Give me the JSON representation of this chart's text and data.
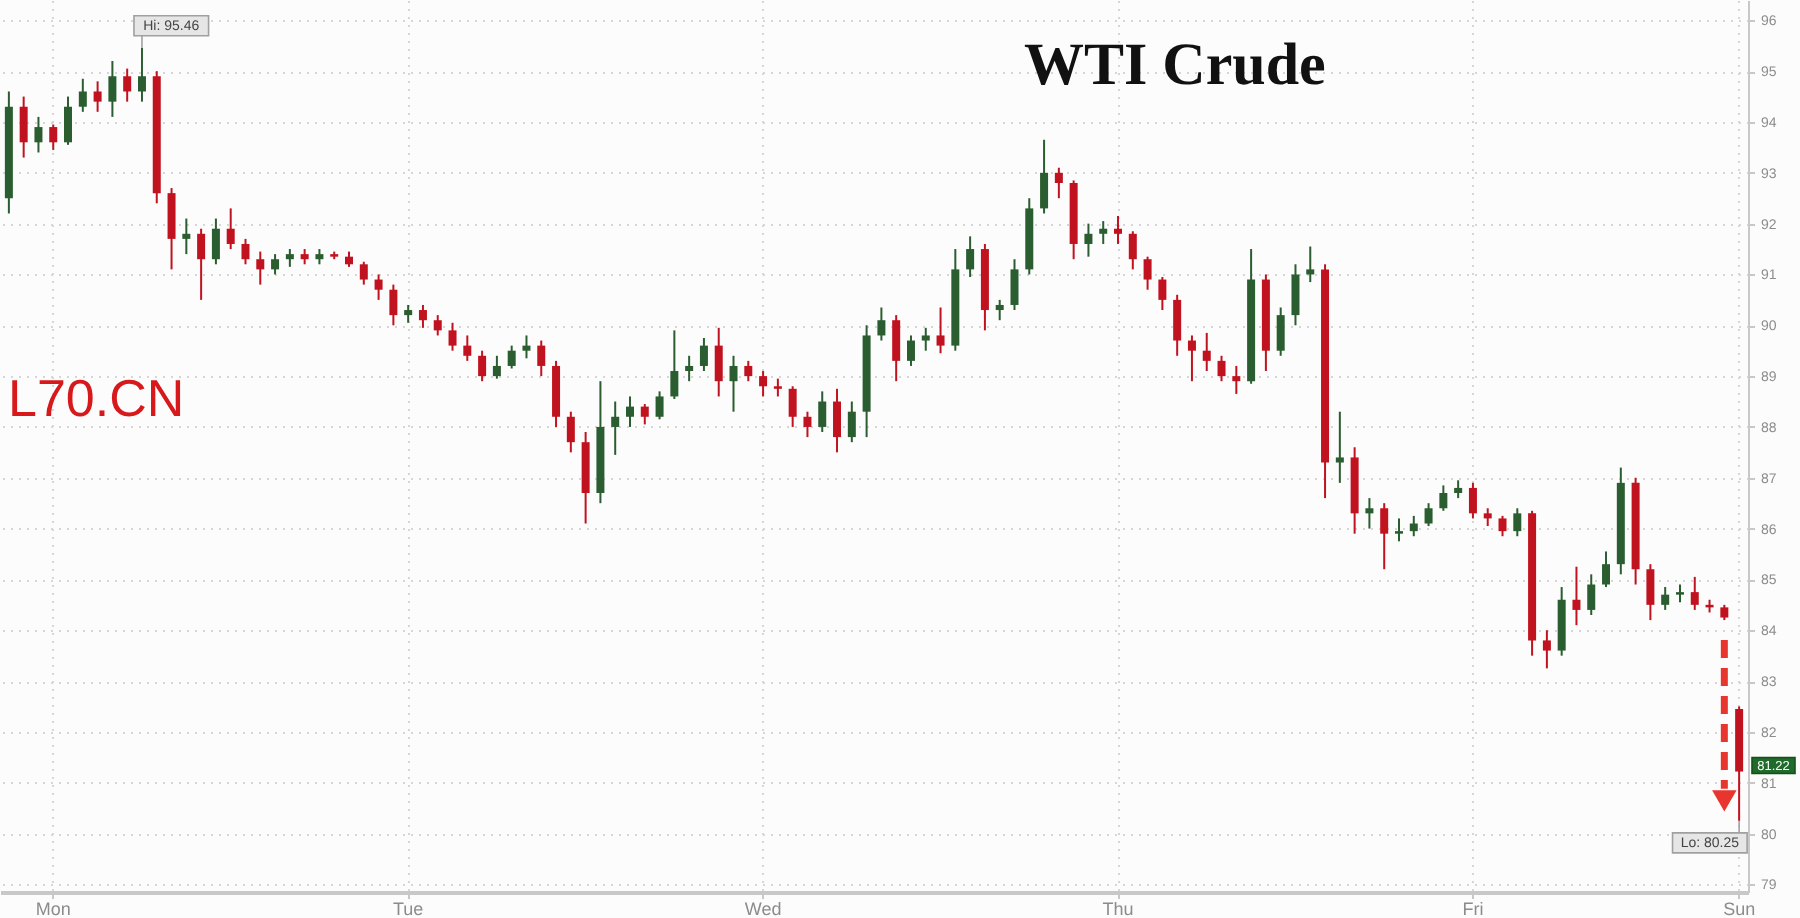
{
  "chart_data": {
    "type": "candlestick",
    "title": "WTI Crude",
    "annotations": [
      "L70.CN",
      "Hi: 95.46",
      {
        "text": "Lo: 80.25",
        "x": "Sun",
        "y": 80.25
      },
      {
        "text": "81.22",
        "x": "Sun",
        "y": 81.22
      }
    ],
    "categories": [
      null,
      null,
      null,
      "Mon",
      null,
      null,
      null,
      null,
      null,
      null,
      null,
      null,
      null,
      null,
      null,
      null,
      null,
      null,
      null,
      null,
      null,
      null,
      null,
      null,
      null,
      null,
      null,
      "Tue",
      null,
      null,
      null,
      null,
      null,
      null,
      null,
      null,
      null,
      null,
      null,
      null,
      null,
      null,
      null,
      null,
      null,
      null,
      null,
      null,
      null,
      null,
      null,
      "Wed",
      null,
      null,
      null,
      null,
      null,
      null,
      null,
      null,
      null,
      null,
      null,
      null,
      null,
      null,
      null,
      null,
      null,
      null,
      null,
      null,
      null,
      null,
      null,
      "Thu",
      null,
      null,
      null,
      null,
      null,
      null,
      null,
      null,
      null,
      null,
      null,
      null,
      null,
      null,
      null,
      null,
      null,
      null,
      null,
      null,
      null,
      null,
      null,
      "Fri",
      null,
      null,
      null,
      null,
      null,
      null,
      null,
      null,
      null,
      null,
      null,
      null,
      null,
      null,
      null,
      null,
      null,
      "Sun"
    ],
    "ohlc": [
      [
        92.5,
        94.6,
        92.2,
        94.3
      ],
      [
        94.3,
        94.5,
        93.3,
        93.6
      ],
      [
        93.6,
        94.1,
        93.4,
        93.9
      ],
      [
        93.9,
        93.95,
        93.45,
        93.6
      ],
      [
        93.6,
        94.5,
        93.55,
        94.3
      ],
      [
        94.3,
        94.85,
        94.2,
        94.6
      ],
      [
        94.6,
        94.8,
        94.2,
        94.4
      ],
      [
        94.4,
        95.2,
        94.1,
        94.9
      ],
      [
        94.9,
        95.05,
        94.4,
        94.6
      ],
      [
        94.6,
        95.46,
        94.4,
        94.9
      ],
      [
        94.9,
        95.0,
        92.4,
        92.6
      ],
      [
        92.6,
        92.7,
        91.1,
        91.7
      ],
      [
        91.7,
        92.1,
        91.4,
        91.8
      ],
      [
        91.8,
        91.9,
        90.5,
        91.3
      ],
      [
        91.3,
        92.1,
        91.2,
        91.9
      ],
      [
        91.9,
        92.3,
        91.5,
        91.6
      ],
      [
        91.6,
        91.7,
        91.2,
        91.3
      ],
      [
        91.3,
        91.45,
        90.8,
        91.1
      ],
      [
        91.1,
        91.4,
        91.0,
        91.3
      ],
      [
        91.3,
        91.5,
        91.15,
        91.4
      ],
      [
        91.4,
        91.5,
        91.2,
        91.3
      ],
      [
        91.3,
        91.5,
        91.2,
        91.4
      ],
      [
        91.4,
        91.45,
        91.3,
        91.35
      ],
      [
        91.35,
        91.45,
        91.15,
        91.2
      ],
      [
        91.2,
        91.25,
        90.8,
        90.9
      ],
      [
        90.9,
        91.0,
        90.5,
        90.7
      ],
      [
        90.7,
        90.8,
        90.0,
        90.2
      ],
      [
        90.2,
        90.4,
        90.05,
        90.3
      ],
      [
        90.3,
        90.4,
        89.95,
        90.1
      ],
      [
        90.1,
        90.2,
        89.8,
        89.9
      ],
      [
        89.9,
        90.05,
        89.5,
        89.6
      ],
      [
        89.6,
        89.8,
        89.3,
        89.4
      ],
      [
        89.4,
        89.5,
        88.9,
        89.0
      ],
      [
        89.0,
        89.4,
        88.95,
        89.2
      ],
      [
        89.2,
        89.6,
        89.15,
        89.5
      ],
      [
        89.5,
        89.8,
        89.35,
        89.6
      ],
      [
        89.6,
        89.7,
        89.0,
        89.2
      ],
      [
        89.2,
        89.3,
        88.0,
        88.2
      ],
      [
        88.2,
        88.3,
        87.5,
        87.7
      ],
      [
        87.7,
        87.9,
        86.1,
        86.7
      ],
      [
        86.7,
        88.9,
        86.5,
        88.0
      ],
      [
        88.0,
        88.5,
        87.45,
        88.2
      ],
      [
        88.2,
        88.6,
        88.0,
        88.4
      ],
      [
        88.4,
        88.45,
        88.05,
        88.2
      ],
      [
        88.2,
        88.7,
        88.15,
        88.6
      ],
      [
        88.6,
        89.9,
        88.55,
        89.1
      ],
      [
        89.1,
        89.4,
        88.9,
        89.2
      ],
      [
        89.2,
        89.75,
        89.1,
        89.6
      ],
      [
        89.6,
        89.95,
        88.6,
        88.9
      ],
      [
        88.9,
        89.4,
        88.3,
        89.2
      ],
      [
        89.2,
        89.3,
        88.9,
        89.0
      ],
      [
        89.0,
        89.1,
        88.6,
        88.8
      ],
      [
        88.8,
        88.95,
        88.6,
        88.75
      ],
      [
        88.75,
        88.8,
        88.0,
        88.2
      ],
      [
        88.2,
        88.3,
        87.8,
        88.0
      ],
      [
        88.0,
        88.7,
        87.9,
        88.5
      ],
      [
        88.5,
        88.75,
        87.5,
        87.8
      ],
      [
        87.8,
        88.5,
        87.7,
        88.3
      ],
      [
        88.3,
        90.0,
        87.8,
        89.8
      ],
      [
        89.8,
        90.35,
        89.7,
        90.1
      ],
      [
        90.1,
        90.2,
        88.9,
        89.3
      ],
      [
        89.3,
        89.8,
        89.2,
        89.7
      ],
      [
        89.7,
        89.95,
        89.5,
        89.8
      ],
      [
        89.8,
        90.35,
        89.45,
        89.6
      ],
      [
        89.6,
        91.5,
        89.5,
        91.1
      ],
      [
        91.1,
        91.75,
        90.95,
        91.5
      ],
      [
        91.5,
        91.6,
        89.9,
        90.3
      ],
      [
        90.3,
        90.5,
        90.1,
        90.4
      ],
      [
        90.4,
        91.3,
        90.3,
        91.1
      ],
      [
        91.1,
        92.5,
        91.0,
        92.3
      ],
      [
        92.3,
        93.65,
        92.2,
        93.0
      ],
      [
        93.0,
        93.1,
        92.5,
        92.8
      ],
      [
        92.8,
        92.85,
        91.3,
        91.6
      ],
      [
        91.6,
        92.0,
        91.35,
        91.8
      ],
      [
        91.8,
        92.05,
        91.6,
        91.9
      ],
      [
        91.9,
        92.15,
        91.6,
        91.8
      ],
      [
        91.8,
        91.85,
        91.1,
        91.3
      ],
      [
        91.3,
        91.35,
        90.7,
        90.9
      ],
      [
        90.9,
        90.95,
        90.3,
        90.5
      ],
      [
        90.5,
        90.6,
        89.4,
        89.7
      ],
      [
        89.7,
        89.8,
        88.9,
        89.5
      ],
      [
        89.5,
        89.85,
        89.1,
        89.3
      ],
      [
        89.3,
        89.4,
        88.9,
        89.0
      ],
      [
        89.0,
        89.2,
        88.65,
        88.9
      ],
      [
        88.9,
        91.5,
        88.85,
        90.9
      ],
      [
        90.9,
        91.0,
        89.1,
        89.5
      ],
      [
        89.5,
        90.35,
        89.4,
        90.2
      ],
      [
        90.2,
        91.2,
        90.0,
        91.0
      ],
      [
        91.0,
        91.55,
        90.85,
        91.1
      ],
      [
        91.1,
        91.2,
        86.6,
        87.3
      ],
      [
        87.3,
        88.3,
        86.9,
        87.4
      ],
      [
        87.4,
        87.6,
        85.9,
        86.3
      ],
      [
        86.3,
        86.6,
        86.0,
        86.4
      ],
      [
        86.4,
        86.5,
        85.2,
        85.9
      ],
      [
        85.9,
        86.2,
        85.75,
        85.95
      ],
      [
        85.95,
        86.25,
        85.85,
        86.1
      ],
      [
        86.1,
        86.5,
        86.05,
        86.4
      ],
      [
        86.4,
        86.85,
        86.35,
        86.7
      ],
      [
        86.7,
        86.95,
        86.6,
        86.8
      ],
      [
        86.8,
        86.9,
        86.2,
        86.3
      ],
      [
        86.3,
        86.4,
        86.05,
        86.2
      ],
      [
        86.2,
        86.25,
        85.85,
        85.95
      ],
      [
        85.95,
        86.4,
        85.85,
        86.3
      ],
      [
        86.3,
        86.35,
        83.5,
        83.8
      ],
      [
        83.8,
        84.0,
        83.25,
        83.6
      ],
      [
        83.6,
        84.85,
        83.5,
        84.6
      ],
      [
        84.6,
        85.25,
        84.1,
        84.4
      ],
      [
        84.4,
        85.1,
        84.3,
        84.9
      ],
      [
        84.9,
        85.55,
        84.85,
        85.3
      ],
      [
        85.3,
        87.2,
        85.1,
        86.9
      ],
      [
        86.9,
        87.0,
        84.9,
        85.2
      ],
      [
        85.2,
        85.3,
        84.2,
        84.5
      ],
      [
        84.5,
        84.85,
        84.4,
        84.7
      ],
      [
        84.7,
        84.9,
        84.55,
        84.75
      ],
      [
        84.75,
        85.05,
        84.4,
        84.5
      ],
      [
        84.5,
        84.6,
        84.35,
        84.45
      ],
      [
        84.45,
        84.5,
        84.2,
        84.25
      ],
      [
        82.45,
        82.5,
        80.25,
        81.22
      ]
    ],
    "colors": [
      "#2a5d2f",
      "#c1121f",
      "#2a5d2f",
      "#c1121f",
      "#2a5d2f",
      "#2a5d2f",
      "#c1121f",
      "#2a5d2f",
      "#c1121f",
      "#2a5d2f",
      "#c1121f",
      "#c1121f",
      "#2a5d2f",
      "#c1121f",
      "#2a5d2f",
      "#c1121f",
      "#c1121f",
      "#c1121f",
      "#2a5d2f",
      "#2a5d2f",
      "#c1121f",
      "#2a5d2f",
      "#c1121f",
      "#c1121f",
      "#c1121f",
      "#c1121f",
      "#c1121f",
      "#2a5d2f",
      "#c1121f",
      "#c1121f",
      "#c1121f",
      "#c1121f",
      "#c1121f",
      "#2a5d2f",
      "#2a5d2f",
      "#2a5d2f",
      "#c1121f",
      "#c1121f",
      "#c1121f",
      "#c1121f",
      "#2a5d2f",
      "#2a5d2f",
      "#2a5d2f",
      "#c1121f",
      "#2a5d2f",
      "#2a5d2f",
      "#2a5d2f",
      "#2a5d2f",
      "#c1121f",
      "#2a5d2f",
      "#c1121f",
      "#c1121f",
      "#c1121f",
      "#c1121f",
      "#c1121f",
      "#2a5d2f",
      "#c1121f",
      "#2a5d2f",
      "#2a5d2f",
      "#2a5d2f",
      "#c1121f",
      "#2a5d2f",
      "#2a5d2f",
      "#c1121f",
      "#2a5d2f",
      "#2a5d2f",
      "#c1121f",
      "#2a5d2f",
      "#2a5d2f",
      "#2a5d2f",
      "#2a5d2f",
      "#c1121f",
      "#c1121f",
      "#2a5d2f",
      "#2a5d2f",
      "#c1121f",
      "#c1121f",
      "#c1121f",
      "#c1121f",
      "#c1121f",
      "#c1121f",
      "#c1121f",
      "#c1121f",
      "#c1121f",
      "#2a5d2f",
      "#c1121f",
      "#2a5d2f",
      "#2a5d2f",
      "#2a5d2f",
      "#c1121f",
      "#2a5d2f",
      "#c1121f",
      "#2a5d2f",
      "#c1121f",
      "#2a5d2f",
      "#2a5d2f",
      "#2a5d2f",
      "#2a5d2f",
      "#2a5d2f",
      "#c1121f",
      "#c1121f",
      "#c1121f",
      "#2a5d2f",
      "#c1121f",
      "#c1121f",
      "#2a5d2f",
      "#c1121f",
      "#2a5d2f",
      "#2a5d2f",
      "#2a5d2f",
      "#c1121f",
      "#c1121f",
      "#2a5d2f",
      "#2a5d2f",
      "#c1121f",
      "#c1121f",
      "#c1121f",
      "#c1121f"
    ],
    "ylim": [
      78.85,
      96.4
    ],
    "yticks": [
      79,
      80,
      81,
      82,
      83,
      84,
      85,
      86,
      87,
      88,
      89,
      90,
      91,
      92,
      93,
      94,
      95,
      96
    ],
    "grid": true
  }
}
